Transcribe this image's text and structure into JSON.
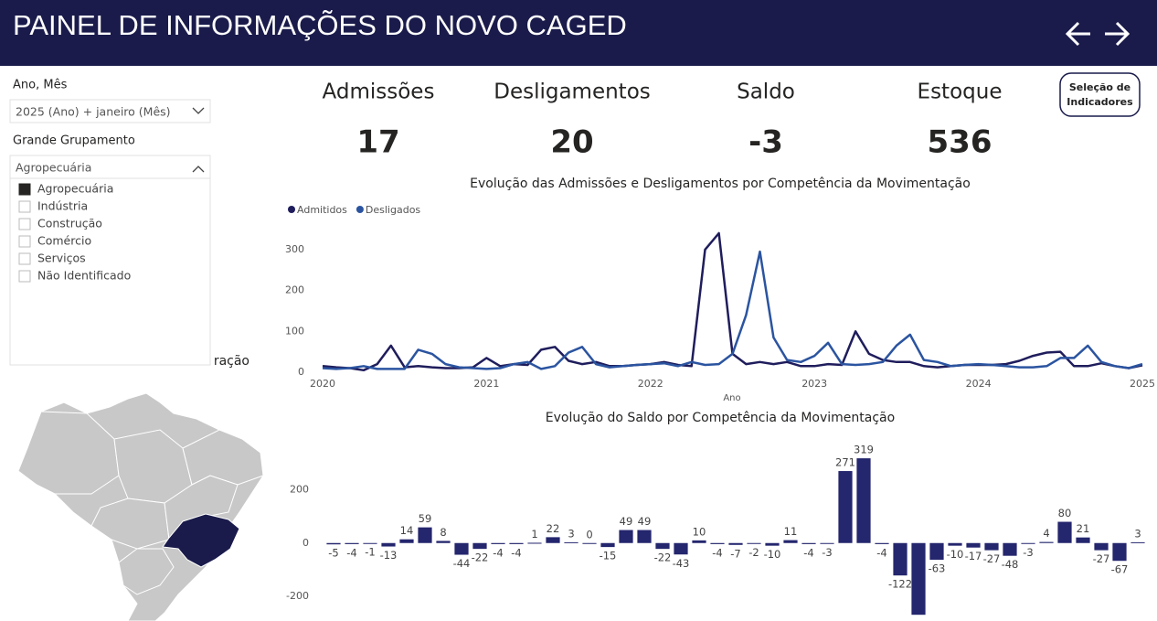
{
  "header": {
    "title": "PAINEL DE INFORMAÇÕES DO NOVO CAGED"
  },
  "filters": {
    "period": {
      "label": "Ano, Mês",
      "selected": "2025 (Ano) + janeiro (Mês)"
    },
    "group": {
      "label": "Grande Grupamento",
      "selected": "Agropecuária",
      "options": [
        "Agropecuária",
        "Indústria",
        "Construção",
        "Comércio",
        "Serviços",
        "Não Identificado"
      ],
      "checked": [
        true,
        false,
        false,
        false,
        false,
        false
      ]
    }
  },
  "kpis": [
    {
      "label": "Admissões",
      "value": 17
    },
    {
      "label": "Desligamentos",
      "value": 20
    },
    {
      "label": "Saldo",
      "value": -3
    },
    {
      "label": "Estoque",
      "value": 536
    }
  ],
  "button": {
    "label": "Seleção de Indicadores"
  },
  "map": {
    "title": "ração"
  },
  "chart_data": [
    {
      "type": "line",
      "title": "Evolução das Admissões e Desligamentos por Competência da Movimentação",
      "x_label": "Ano",
      "x": [
        2020,
        2020.083,
        2020.167,
        2020.25,
        2020.333,
        2020.417,
        2020.5,
        2020.583,
        2020.667,
        2020.75,
        2020.833,
        2020.917,
        2021,
        2021.083,
        2021.167,
        2021.25,
        2021.333,
        2021.417,
        2021.5,
        2021.583,
        2021.667,
        2021.75,
        2021.833,
        2021.917,
        2022,
        2022.083,
        2022.167,
        2022.25,
        2022.333,
        2022.417,
        2022.5,
        2022.583,
        2022.667,
        2022.75,
        2022.833,
        2022.917,
        2023,
        2023.083,
        2023.167,
        2023.25,
        2023.333,
        2023.417,
        2023.5,
        2023.583,
        2023.667,
        2023.75,
        2023.833,
        2023.917,
        2024,
        2024.083,
        2024.167,
        2024.25,
        2024.333,
        2024.417,
        2024.5,
        2024.583,
        2024.667,
        2024.75,
        2024.833,
        2024.917,
        2025
      ],
      "series": [
        {
          "name": "Admitidos",
          "color": "#1f1d5c",
          "values": [
            15,
            12,
            10,
            5,
            20,
            65,
            12,
            15,
            12,
            10,
            10,
            12,
            35,
            15,
            20,
            18,
            55,
            62,
            28,
            20,
            25,
            15,
            15,
            18,
            20,
            25,
            18,
            15,
            300,
            340,
            45,
            20,
            25,
            20,
            25,
            15,
            15,
            20,
            18,
            100,
            45,
            30,
            25,
            25,
            15,
            12,
            15,
            18,
            18,
            18,
            20,
            28,
            40,
            48,
            50,
            15,
            15,
            22,
            15,
            10,
            17
          ]
        },
        {
          "name": "Desligados",
          "color": "#2b54a0",
          "values": [
            10,
            8,
            10,
            15,
            8,
            8,
            8,
            55,
            45,
            20,
            12,
            10,
            8,
            10,
            20,
            25,
            8,
            15,
            48,
            62,
            20,
            12,
            15,
            18,
            20,
            22,
            15,
            25,
            18,
            20,
            45,
            140,
            295,
            85,
            30,
            25,
            40,
            72,
            20,
            18,
            20,
            25,
            65,
            92,
            30,
            25,
            15,
            18,
            20,
            18,
            15,
            12,
            12,
            15,
            35,
            35,
            65,
            25,
            15,
            10,
            20
          ]
        }
      ],
      "xlim": [
        2020,
        2025
      ],
      "xticks": [
        2020,
        2021,
        2022,
        2023,
        2024,
        2025
      ],
      "ylim": [
        0,
        340
      ],
      "yticks": [
        0,
        100,
        200,
        300
      ],
      "legend": "top-left"
    },
    {
      "type": "bar",
      "title": "Evolução do Saldo por Competência da Movimentação",
      "color": "#24266e",
      "values": [
        -5,
        -4,
        -1,
        -13,
        14,
        59,
        8,
        -44,
        -22,
        -4,
        -4,
        1,
        22,
        3,
        0,
        -15,
        49,
        49,
        -22,
        -43,
        10,
        -4,
        -7,
        -2,
        -10,
        11,
        -4,
        -3,
        271,
        319,
        -4,
        -122,
        -270,
        -63,
        -10,
        -17,
        -27,
        -48,
        -3,
        4,
        80,
        21,
        -27,
        -67,
        3
      ],
      "value_labels": [
        "-5",
        "-4",
        "-1",
        "-13",
        "14",
        "59",
        "8",
        "-44",
        "-22",
        "-4",
        "-4",
        "1",
        "22",
        "3",
        "0",
        "-15",
        "49",
        "49",
        "-22",
        "-43",
        "10",
        "-4",
        "-7",
        "-2",
        "-10",
        "11",
        "-4",
        "-3",
        "271",
        "319",
        "-4",
        "-122",
        null,
        "-63",
        "-10",
        "-17",
        "-27",
        "-48",
        "-3",
        "4",
        "80",
        "21",
        "-27",
        "-67",
        "3"
      ],
      "ylim": [
        -290,
        340
      ],
      "yticks": [
        -200,
        0,
        200
      ]
    }
  ]
}
